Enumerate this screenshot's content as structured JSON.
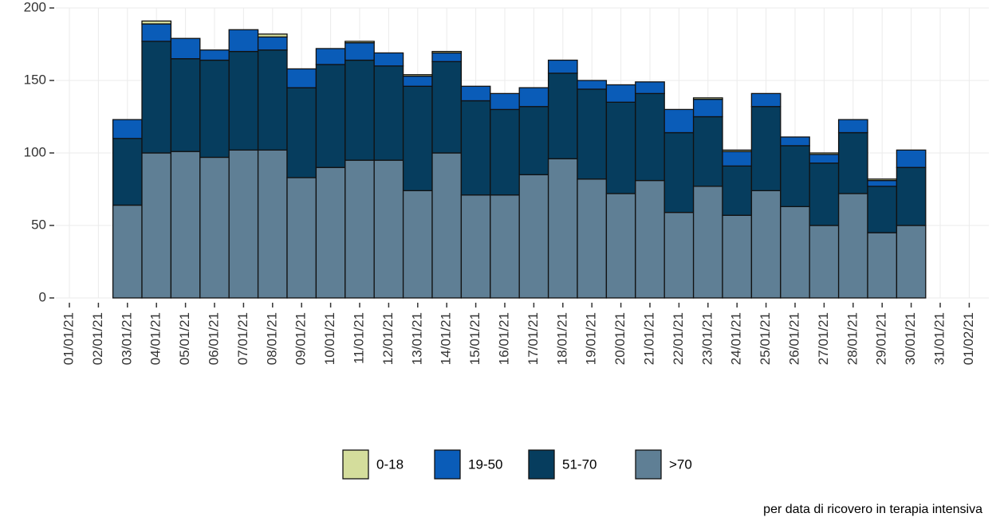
{
  "chart_data": {
    "type": "stacked_bar",
    "categories": [
      "01/01/21",
      "02/01/21",
      "03/01/21",
      "04/01/21",
      "05/01/21",
      "06/01/21",
      "07/01/21",
      "08/01/21",
      "09/01/21",
      "10/01/21",
      "11/01/21",
      "12/01/21",
      "13/01/21",
      "14/01/21",
      "15/01/21",
      "16/01/21",
      "17/01/21",
      "18/01/21",
      "19/01/21",
      "20/01/21",
      "21/01/21",
      "22/01/21",
      "23/01/21",
      "24/01/21",
      "25/01/21",
      "26/01/21",
      "27/01/21",
      "28/01/21",
      "29/01/21",
      "30/01/21",
      "31/01/21",
      "01/02/21"
    ],
    "series": [
      {
        "name": "0-18",
        "color": "#d4dd9c",
        "values": [
          null,
          null,
          0,
          2,
          0,
          0,
          0,
          2,
          0,
          0,
          1,
          0,
          1,
          1,
          0,
          0,
          0,
          0,
          0,
          0,
          0,
          0,
          1,
          1,
          0,
          0,
          1,
          0,
          1,
          0,
          null,
          null
        ]
      },
      {
        "name": "19-50",
        "color": "#0a5cb8",
        "values": [
          null,
          null,
          13,
          12,
          14,
          7,
          15,
          9,
          13,
          11,
          12,
          9,
          7,
          6,
          10,
          11,
          13,
          9,
          6,
          12,
          8,
          16,
          12,
          10,
          9,
          6,
          6,
          9,
          4,
          12,
          null,
          null
        ]
      },
      {
        "name": "51-70",
        "color": "#063d5e",
        "values": [
          null,
          null,
          46,
          77,
          64,
          67,
          68,
          69,
          62,
          71,
          69,
          65,
          72,
          63,
          65,
          59,
          47,
          59,
          62,
          63,
          60,
          55,
          48,
          34,
          58,
          42,
          43,
          42,
          32,
          40,
          null,
          null
        ]
      },
      {
        "name": ">70",
        "color": "#5f7f95",
        "values": [
          null,
          null,
          64,
          100,
          101,
          97,
          102,
          102,
          83,
          90,
          95,
          95,
          74,
          100,
          71,
          71,
          85,
          96,
          82,
          72,
          81,
          59,
          77,
          57,
          74,
          63,
          50,
          72,
          45,
          50,
          null,
          null
        ]
      }
    ],
    "ylim": [
      0,
      200
    ],
    "yticks": [
      0,
      50,
      100,
      150,
      200
    ],
    "grid": true,
    "caption": "per data di ricovero in terapia intensiva"
  }
}
